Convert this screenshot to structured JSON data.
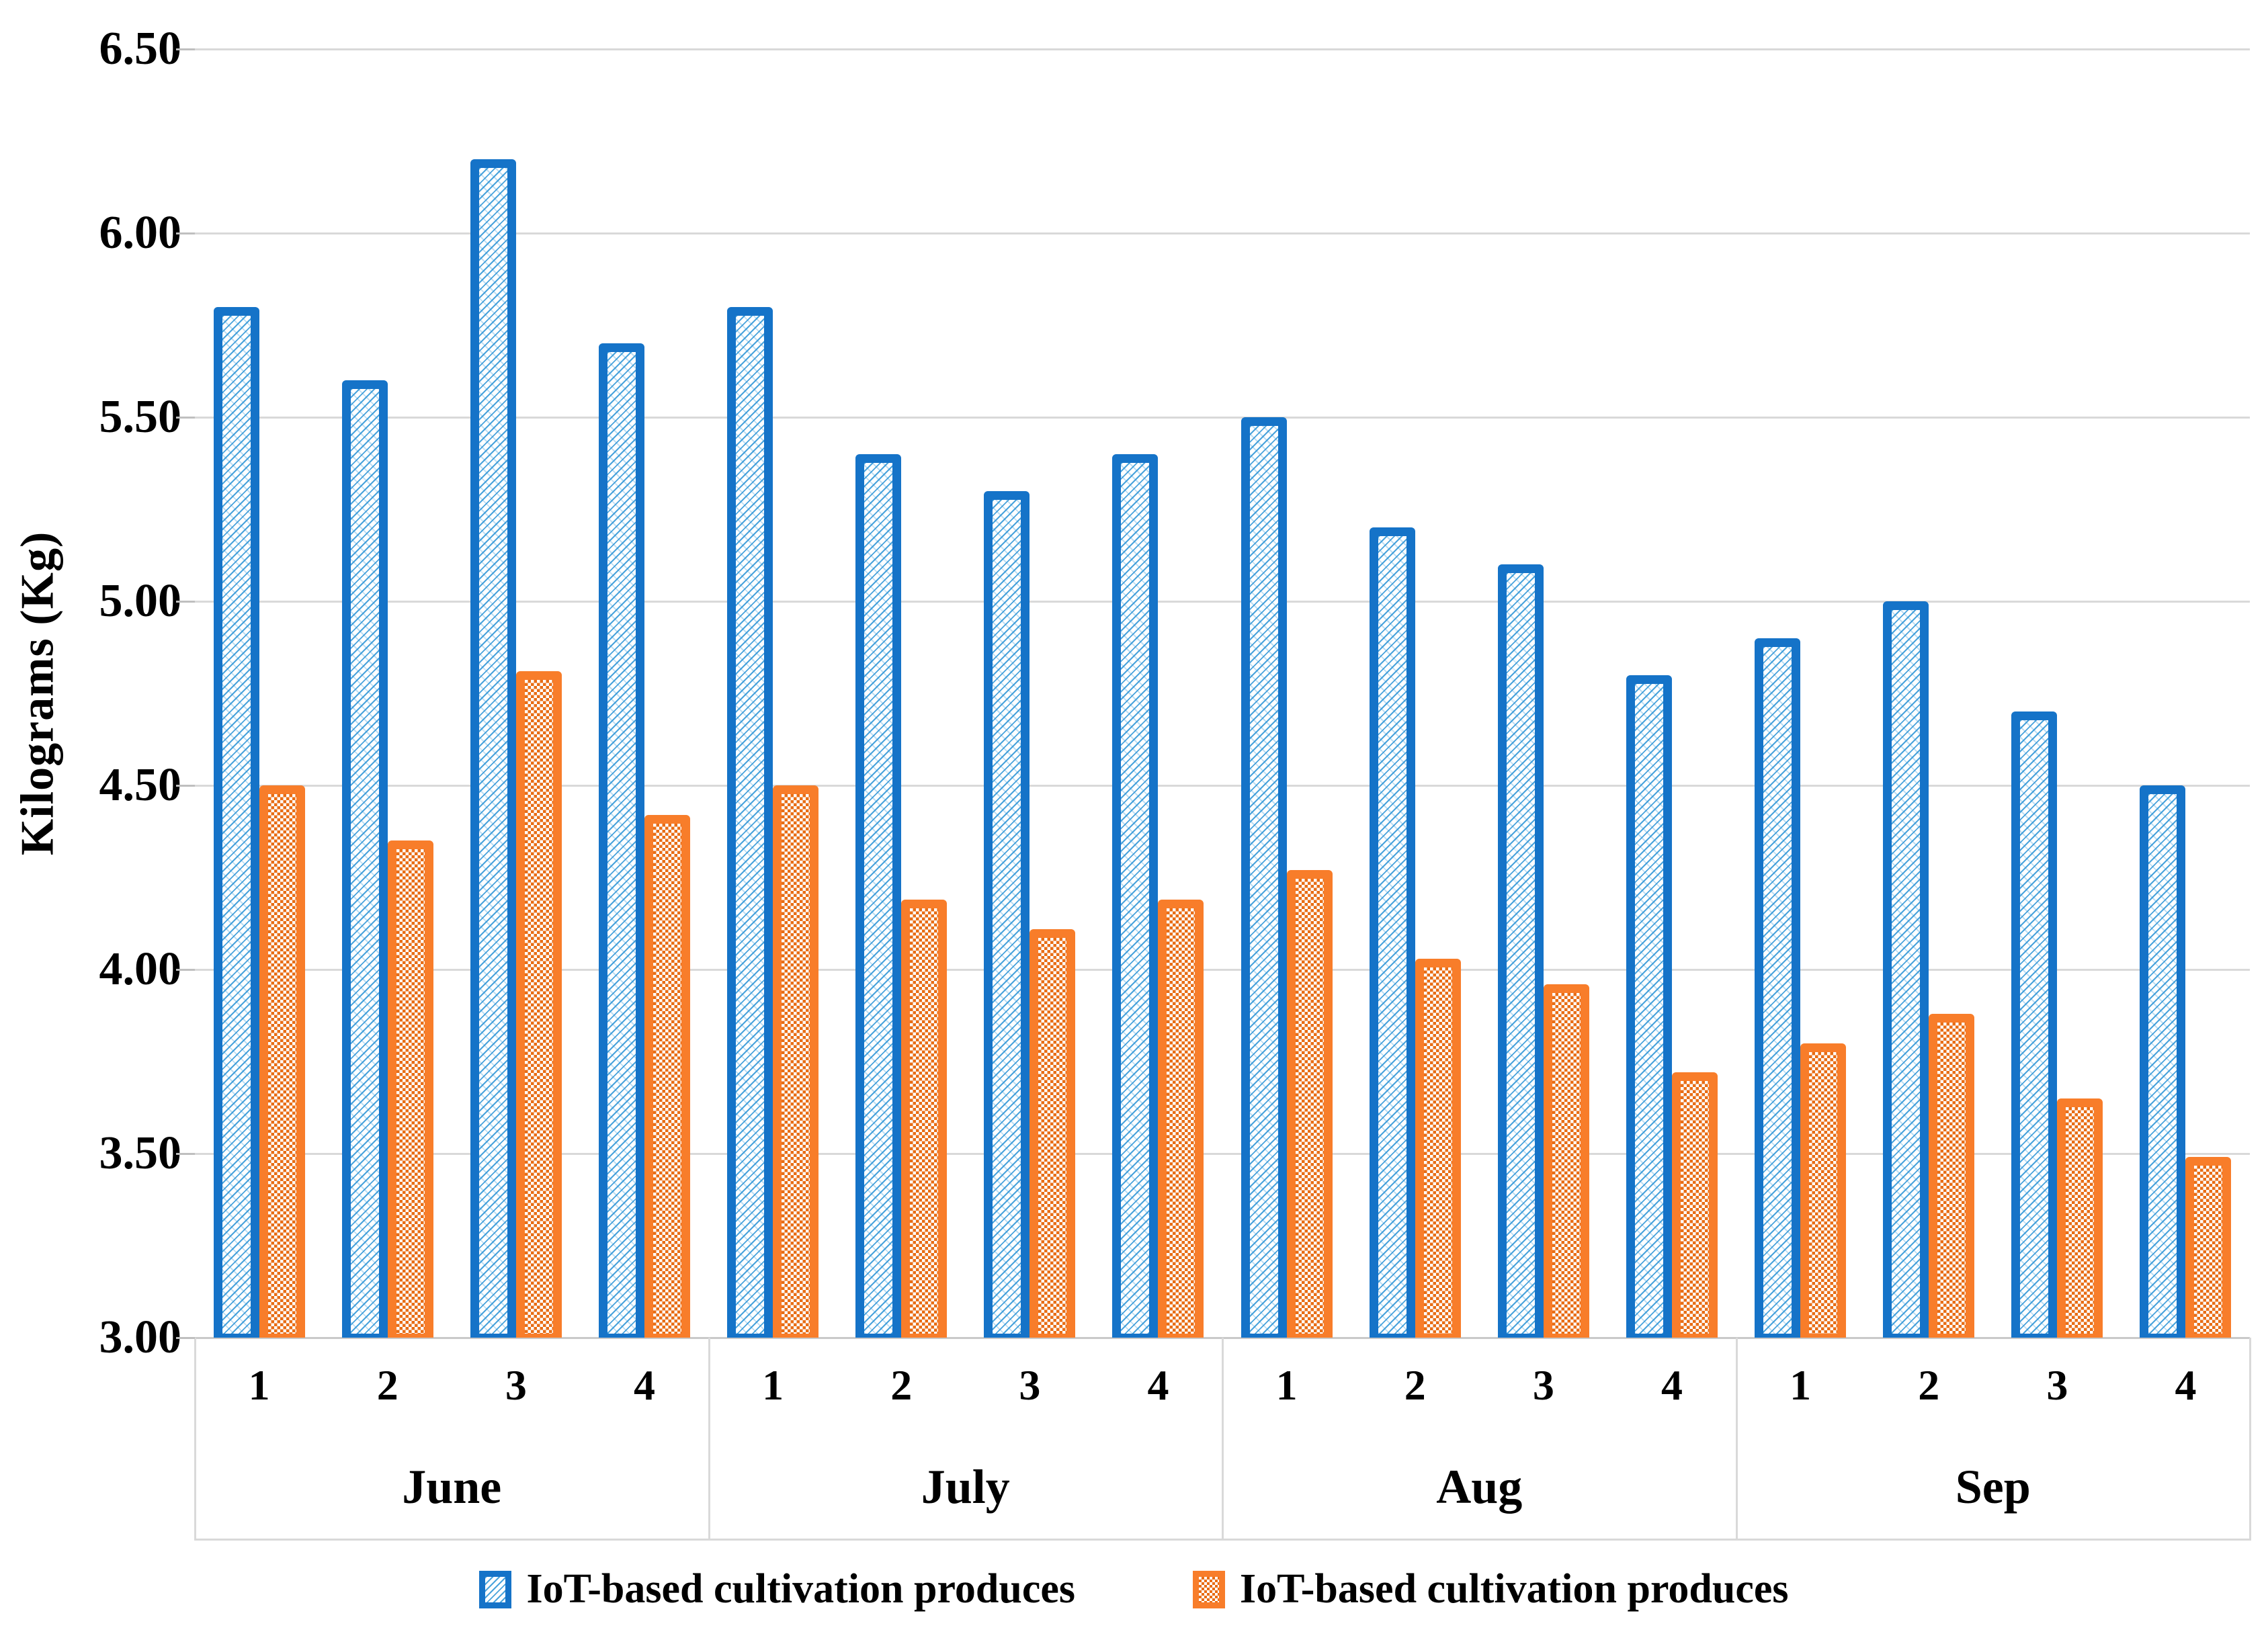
{
  "y_axis": {
    "title": "Kilograms (Kg)",
    "tick_labels": [
      "6.50",
      "6.00",
      "5.50",
      "5.00",
      "4.50",
      "4.00",
      "3.50",
      "3.00"
    ]
  },
  "chart_data": {
    "type": "bar",
    "title": "",
    "xlabel": "",
    "ylabel": "Kilograms (Kg)",
    "ylim": [
      3.0,
      6.5
    ],
    "ytick_step": 0.5,
    "grid": true,
    "legend_position": "bottom-center",
    "months": [
      "June",
      "July",
      "Aug",
      "Sep"
    ],
    "weeks_per_month": [
      "1",
      "2",
      "3",
      "4"
    ],
    "categories": [
      "June-1",
      "June-2",
      "June-3",
      "June-4",
      "July-1",
      "July-2",
      "July-3",
      "July-4",
      "Aug-1",
      "Aug-2",
      "Aug-3",
      "Aug-4",
      "Sep-1",
      "Sep-2",
      "Sep-3",
      "Sep-4"
    ],
    "series": [
      {
        "name": "IoT-based cultivation produces",
        "style": "blue-diagonal-dot-pattern",
        "border_color": "#1573C8",
        "pattern_color": "#2993D6",
        "values": [
          5.8,
          5.6,
          6.2,
          5.7,
          5.8,
          5.4,
          5.3,
          5.4,
          5.5,
          5.2,
          5.1,
          4.8,
          4.9,
          5.0,
          4.7,
          4.5
        ]
      },
      {
        "name": "IoT-based cultivation produces",
        "style": "orange-checker-pattern",
        "border_color": "#F87D2A",
        "pattern_color": "#E86D15",
        "values": [
          4.5,
          4.35,
          4.81,
          4.42,
          4.5,
          4.19,
          4.11,
          4.19,
          4.27,
          4.03,
          3.96,
          3.72,
          3.8,
          3.88,
          3.65,
          3.49
        ]
      }
    ]
  },
  "legend": {
    "items": [
      {
        "label": "IoT-based cultivation produces",
        "swatch": "blue-pattern"
      },
      {
        "label": "IoT-based cultivation produces",
        "swatch": "orange-pattern"
      }
    ]
  },
  "colors": {
    "gridline": "#D9D9D9",
    "axis_line": "#C9C9C9",
    "tick": "#BFBFBF",
    "text": "#000000",
    "series1_border": "#1573C8",
    "series1_pattern": "#2993D6",
    "series2_border": "#F87D2A",
    "series2_pattern": "#E86D15"
  }
}
